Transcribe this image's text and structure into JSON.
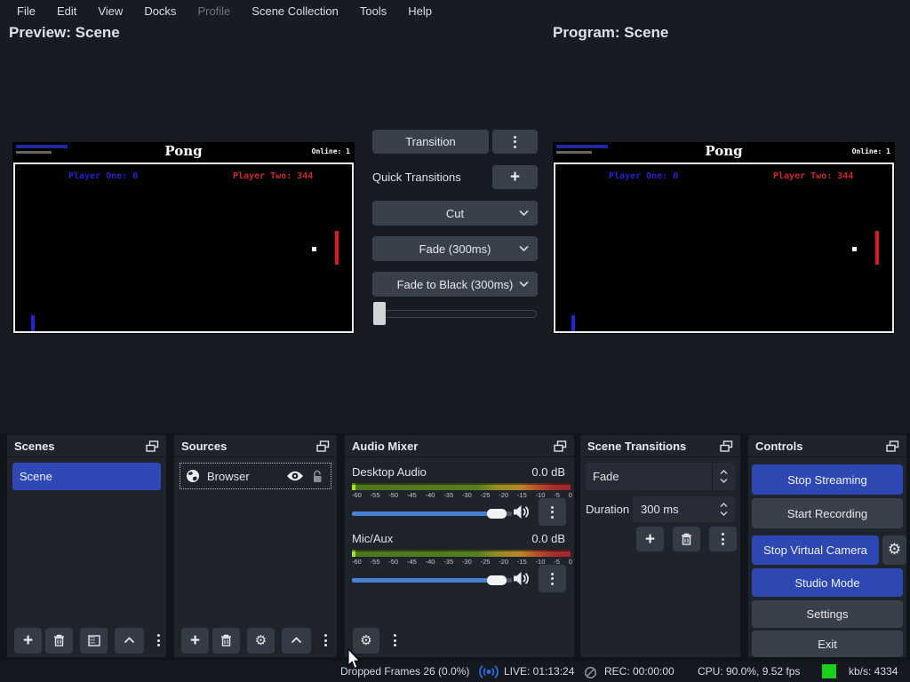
{
  "menu": {
    "items": [
      {
        "label": "File"
      },
      {
        "label": "Edit"
      },
      {
        "label": "View"
      },
      {
        "label": "Docks"
      },
      {
        "label": "Profile"
      },
      {
        "label": "Scene Collection"
      },
      {
        "label": "Tools"
      },
      {
        "label": "Help"
      }
    ]
  },
  "preview": {
    "title": "Preview: Scene"
  },
  "program": {
    "title": "Program: Scene"
  },
  "pong": {
    "title": "Pong",
    "online": "Online: 1",
    "player_one": "Player One: 0",
    "player_two": "Player Two: 344"
  },
  "transition_panel": {
    "transition_label": "Transition",
    "quick_transitions_label": "Quick Transitions",
    "quick_items": [
      "Cut",
      "Fade (300ms)",
      "Fade to Black (300ms)"
    ]
  },
  "scenes_dock": {
    "title": "Scenes",
    "items": [
      {
        "label": "Scene",
        "selected": true
      }
    ]
  },
  "sources_dock": {
    "title": "Sources",
    "items": [
      {
        "label": "Browser",
        "visible": true,
        "locked": false
      }
    ]
  },
  "audio_mixer": {
    "title": "Audio Mixer",
    "channels": [
      {
        "name": "Desktop Audio",
        "level": "0.0 dB"
      },
      {
        "name": "Mic/Aux",
        "level": "0.0 dB"
      }
    ],
    "ticks": [
      "-60",
      "-55",
      "-50",
      "-45",
      "-40",
      "-35",
      "-30",
      "-25",
      "-20",
      "-15",
      "-10",
      "-5",
      "0"
    ]
  },
  "scene_transitions": {
    "title": "Scene Transitions",
    "transition_value": "Fade",
    "duration_label": "Duration",
    "duration_value": "300 ms"
  },
  "controls": {
    "title": "Controls",
    "buttons": [
      {
        "label": "Stop Streaming",
        "style": "blue"
      },
      {
        "label": "Start Recording",
        "style": "dark"
      },
      {
        "label": "Stop Virtual Camera",
        "style": "blue"
      },
      {
        "label": "Studio Mode",
        "style": "blue"
      },
      {
        "label": "Settings",
        "style": "dark"
      },
      {
        "label": "Exit",
        "style": "dark"
      }
    ]
  },
  "status_bar": {
    "dropped_frames": "Dropped Frames 26 (0.0%)",
    "live": "LIVE: 01:13:24",
    "rec": "REC: 00:00:00",
    "cpu": "CPU: 90.0%, 9.52 fps",
    "bitrate": "kb/s: 4334"
  },
  "icons": {
    "plus": "+",
    "gear": "⚙",
    "kebab": "vertical-dots",
    "popout": "overlapping-windows",
    "eye": "visibility",
    "lock_open": "unlocked",
    "globe": "browser-source",
    "speaker": "volume",
    "broadcast": "live-signal",
    "rec_off": "record-inactive"
  },
  "colors": {
    "accent_blue": "#2d47b3",
    "slider_blue": "#4a7fd6",
    "live_icon_blue": "#2f6fe4",
    "bitrate_green": "#17d219",
    "meter_green": "#577e20",
    "meter_orange": "#b8872b",
    "meter_red": "#a02a2a",
    "selection_blue": "#2e49b5"
  }
}
